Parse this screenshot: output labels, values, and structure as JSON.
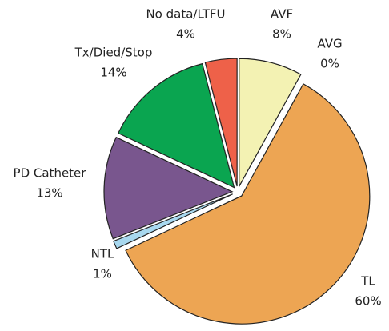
{
  "chart_data": {
    "type": "pie",
    "categories": [
      "AVF",
      "AVG",
      "TL",
      "NTL",
      "PD Catheter",
      "Tx/Died/Stop",
      "No data/LTFU"
    ],
    "values": [
      8,
      0,
      60,
      1,
      13,
      14,
      4
    ],
    "value_labels": [
      "8%",
      "0%",
      "60%",
      "1%",
      "13%",
      "14%",
      "4%"
    ],
    "colors": [
      "#f3f2b3",
      "#c9c9c9",
      "#eda553",
      "#a8d8ef",
      "#79568e",
      "#0aa550",
      "#ee6149"
    ]
  }
}
